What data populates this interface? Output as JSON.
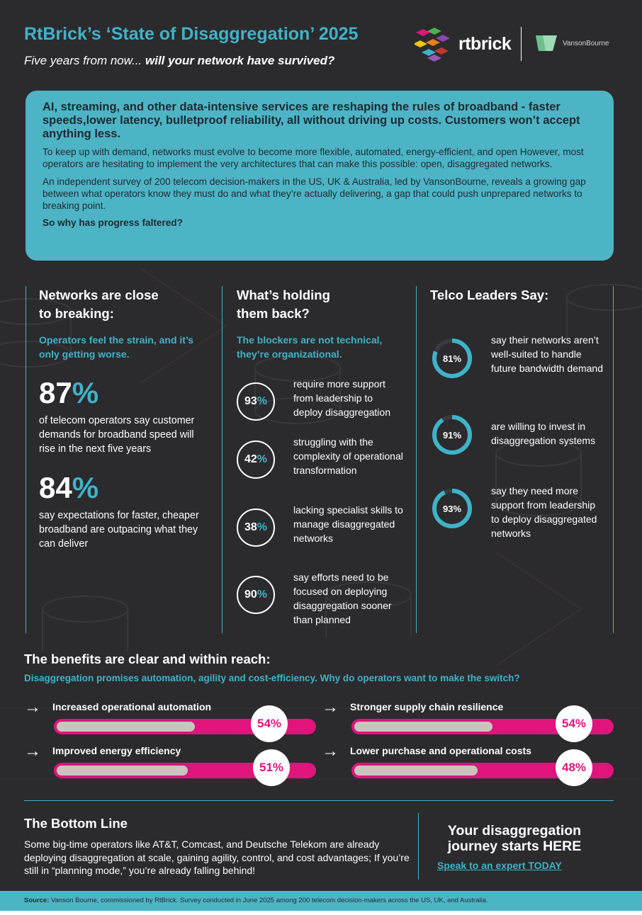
{
  "header": {
    "title": "RtBrick’s ‘State of Disaggregation’ 2025",
    "subtitle_lead": "Five years from now...",
    "subtitle_bold": " will your network have survived?",
    "logo_rtbrick": "rtbrick",
    "logo_vanson": "VansonBourne"
  },
  "intro": {
    "lead": "AI, streaming, and other data-intensive services are reshaping the rules of broadband - faster speeds,lower latency, bulletproof reliability, all without driving up costs. Customers won’t accept anything less.",
    "p1": "To keep up with demand, networks must evolve to become more flexible, automated, energy-efficient, and open However, most operators are hesitating to implement the very architectures that can make this possible: open, disaggregated networks.",
    "p2": "An independent survey of 200 telecom decision-makers in the US, UK & Australia, led by VansonBourne, reveals a growing gap between what operators know they must do and what they’re actually delivering, a gap that could push unprepared networks to breaking point.",
    "question": "So why has progress faltered?"
  },
  "col1": {
    "head1": "Networks are close",
    "head2": "to breaking:",
    "sub": "Operators feel the strain, and it’s only getting worse.",
    "stats": [
      {
        "num": "87",
        "pct": "%",
        "text": "of telecom operators say customer demands for broadband speed will rise in the next five years"
      },
      {
        "num": "84",
        "pct": "%",
        "text": "say expectations for faster, cheaper broadband are outpacing what they can deliver"
      }
    ]
  },
  "col2": {
    "head1": "What’s holding",
    "head2": "them back?",
    "sub": "The blockers are not technical, they’re organizational.",
    "items": [
      {
        "num": "93",
        "pct": "%",
        "text": "require more support from leadership to deploy disaggregation"
      },
      {
        "num": "42",
        "pct": "%",
        "text": "struggling with the complexity of operational transformation"
      },
      {
        "num": "38",
        "pct": "%",
        "text": "lacking specialist skills to manage disaggregated networks"
      },
      {
        "num": "90",
        "pct": "%",
        "text": "say efforts need to be focused on deploying disaggregation sooner than planned"
      }
    ]
  },
  "col3": {
    "head": "Telco Leaders Say:",
    "items": [
      {
        "label": "81%",
        "value": 81,
        "text": "say their networks aren’t well-suited to handle future bandwidth demand"
      },
      {
        "label": "91%",
        "value": 91,
        "text": "are willing to invest in disaggregation systems"
      },
      {
        "label": "93%",
        "value": 93,
        "text": "say they need more support from leadership to deploy disaggregated networks"
      }
    ]
  },
  "benefits": {
    "head": "The benefits are clear and within reach:",
    "sub": "Disaggregation promises automation, agility and cost-efficiency. Why do operators want to make the switch?",
    "arrow": "→",
    "items": [
      {
        "label": "Increased operational automation",
        "value": 54,
        "badge": "54%"
      },
      {
        "label": "Stronger supply chain resilience",
        "value": 54,
        "badge": "54%"
      },
      {
        "label": "Improved energy efficiency",
        "value": 51,
        "badge": "51%"
      },
      {
        "label": "Lower purchase and operational costs",
        "value": 48,
        "badge": "48%"
      }
    ]
  },
  "bottom": {
    "head": "The Bottom Line",
    "text": "Some big-time operators like AT&T, Comcast, and Deutsche Telekom are already deploying disaggregation at scale, gaining agility, control, and cost advantages; If you’re still in “planning mode,” you’re already falling behind!",
    "cta_head": "Your disaggregation journey starts HERE",
    "cta_link": "Speak to an expert TODAY"
  },
  "footer": {
    "label": "Source:",
    "text": " Vanson Bourne, commissioned by RtBrick. Survey conducted in June 2025 among 200 telecom decision-makers across the US, UK, and Australia."
  },
  "colors": {
    "background": "#2b2a2d",
    "teal": "#3fb3c8",
    "intro_box": "#4db4c6",
    "magenta": "#e0147b",
    "bar_track": "#c9c5bd"
  }
}
